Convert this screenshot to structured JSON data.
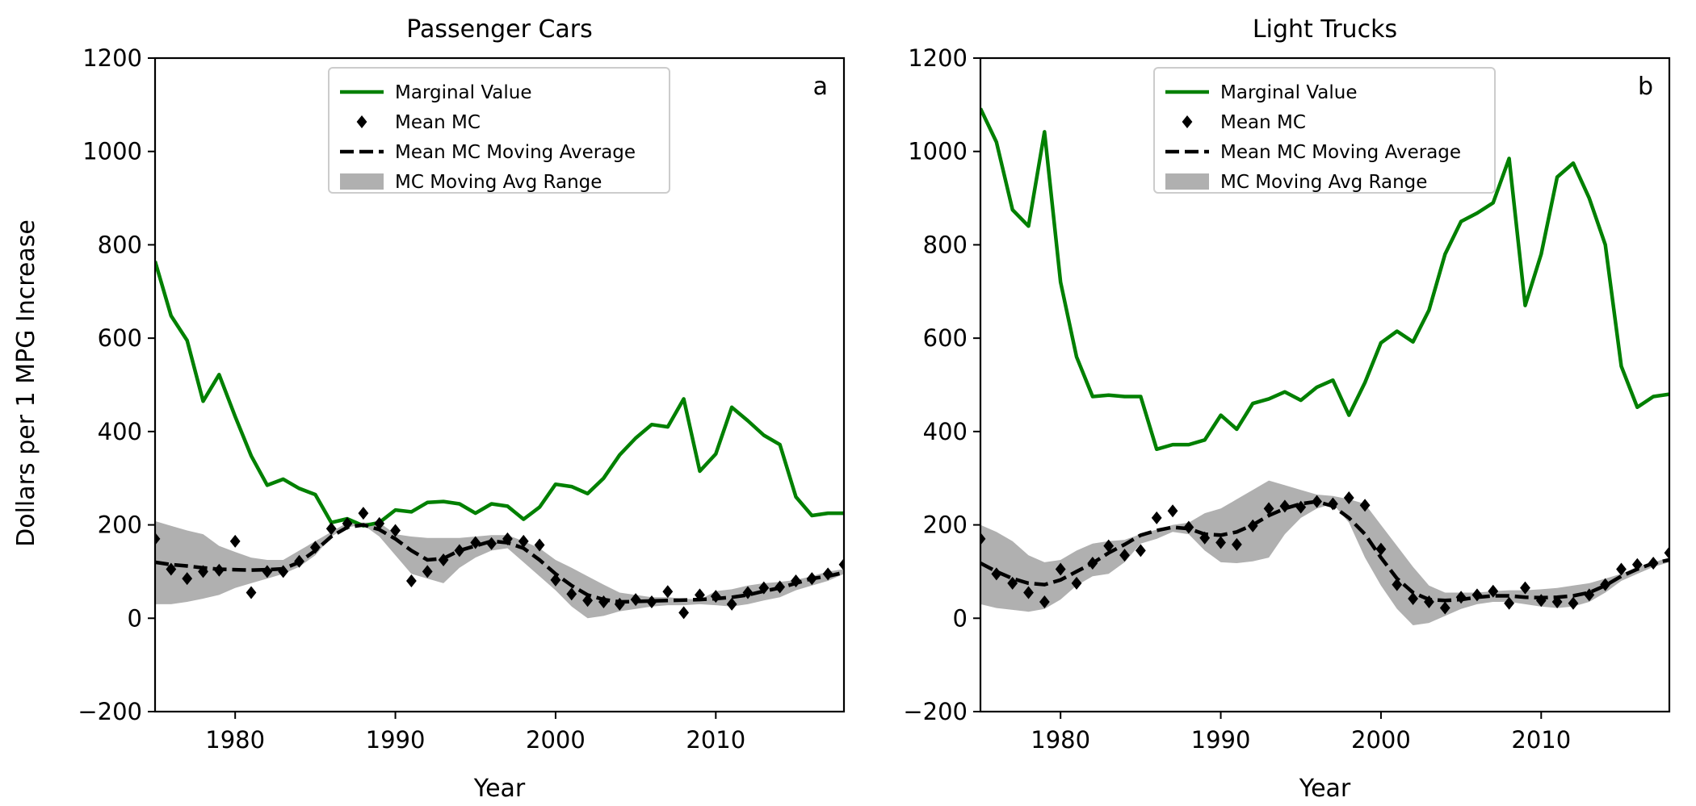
{
  "figure": {
    "ylabel": "Dollars per 1  MPG Increase"
  },
  "chart_data": [
    {
      "type": "line",
      "panel_letter": "a",
      "title": "Passenger Cars",
      "xlabel": "Year",
      "xlim": [
        1975,
        2018
      ],
      "ylim": [
        -200,
        1200
      ],
      "xticks": [
        1980,
        1990,
        2000,
        2010
      ],
      "yticks": [
        -200,
        0,
        200,
        400,
        600,
        800,
        1000,
        1200
      ],
      "grid": false,
      "legend_position": "upper-center",
      "colors": {
        "marginal": "#008000",
        "mc": "#000000",
        "range": "#b0b0b0"
      },
      "legend": [
        "Marginal Value",
        "Mean MC",
        "Mean MC Moving Average",
        "MC Moving Avg Range"
      ],
      "years": [
        1975,
        1976,
        1977,
        1978,
        1979,
        1980,
        1981,
        1982,
        1983,
        1984,
        1985,
        1986,
        1987,
        1988,
        1989,
        1990,
        1991,
        1992,
        1993,
        1994,
        1995,
        1996,
        1997,
        1998,
        1999,
        2000,
        2001,
        2002,
        2003,
        2004,
        2005,
        2006,
        2007,
        2008,
        2009,
        2010,
        2011,
        2012,
        2013,
        2014,
        2015,
        2016,
        2017,
        2018
      ],
      "series": [
        {
          "name": "Marginal Value",
          "style": "line",
          "values": [
            765,
            648,
            595,
            465,
            522,
            432,
            348,
            285,
            298,
            278,
            265,
            205,
            213,
            198,
            205,
            232,
            228,
            248,
            250,
            245,
            225,
            245,
            240,
            212,
            238,
            287,
            282,
            267,
            300,
            350,
            386,
            415,
            410,
            470,
            315,
            352,
            452,
            423,
            392,
            372,
            260,
            220,
            225,
            225
          ]
        },
        {
          "name": "Mean MC",
          "style": "markers",
          "values": [
            170,
            105,
            85,
            100,
            103,
            165,
            55,
            100,
            100,
            122,
            152,
            192,
            203,
            225,
            203,
            188,
            80,
            100,
            125,
            145,
            162,
            160,
            170,
            165,
            157,
            82,
            52,
            38,
            35,
            30,
            40,
            35,
            57,
            12,
            50,
            47,
            30,
            55,
            65,
            67,
            80,
            85,
            95,
            115
          ]
        },
        {
          "name": "Mean MC Moving Average",
          "style": "dashed",
          "values": [
            120,
            115,
            112,
            108,
            105,
            104,
            103,
            104,
            106,
            120,
            145,
            175,
            195,
            200,
            190,
            170,
            145,
            125,
            128,
            145,
            155,
            165,
            162,
            150,
            125,
            95,
            70,
            50,
            40,
            35,
            36,
            37,
            38,
            39,
            40,
            42,
            45,
            50,
            58,
            65,
            75,
            85,
            90,
            98
          ]
        },
        {
          "name": "MC Moving Avg Range",
          "style": "band",
          "lower": [
            30,
            30,
            35,
            42,
            50,
            65,
            75,
            85,
            95,
            110,
            135,
            175,
            195,
            200,
            175,
            135,
            95,
            85,
            75,
            108,
            130,
            145,
            150,
            120,
            90,
            60,
            25,
            0,
            5,
            15,
            20,
            25,
            28,
            28,
            30,
            28,
            25,
            30,
            38,
            45,
            60,
            70,
            80,
            95
          ],
          "upper": [
            208,
            198,
            188,
            180,
            155,
            142,
            130,
            125,
            125,
            145,
            165,
            185,
            205,
            205,
            205,
            180,
            175,
            172,
            172,
            172,
            175,
            178,
            178,
            165,
            150,
            125,
            108,
            90,
            72,
            55,
            50,
            45,
            45,
            42,
            40,
            58,
            62,
            70,
            75,
            78,
            82,
            90,
            100,
            105
          ]
        }
      ]
    },
    {
      "type": "line",
      "panel_letter": "b",
      "title": "Light Trucks",
      "xlabel": "Year",
      "xlim": [
        1975,
        2018
      ],
      "ylim": [
        -200,
        1200
      ],
      "xticks": [
        1980,
        1990,
        2000,
        2010
      ],
      "yticks": [
        -200,
        0,
        200,
        400,
        600,
        800,
        1000,
        1200
      ],
      "grid": false,
      "legend_position": "upper-center",
      "colors": {
        "marginal": "#008000",
        "mc": "#000000",
        "range": "#b0b0b0"
      },
      "legend": [
        "Marginal Value",
        "Mean MC",
        "Mean MC Moving Average",
        "MC Moving Avg Range"
      ],
      "years": [
        1975,
        1976,
        1977,
        1978,
        1979,
        1980,
        1981,
        1982,
        1983,
        1984,
        1985,
        1986,
        1987,
        1988,
        1989,
        1990,
        1991,
        1992,
        1993,
        1994,
        1995,
        1996,
        1997,
        1998,
        1999,
        2000,
        2001,
        2002,
        2003,
        2004,
        2005,
        2006,
        2007,
        2008,
        2009,
        2010,
        2011,
        2012,
        2013,
        2014,
        2015,
        2016,
        2017,
        2018
      ],
      "series": [
        {
          "name": "Marginal Value",
          "style": "line",
          "values": [
            1092,
            1020,
            875,
            840,
            1042,
            720,
            560,
            475,
            478,
            475,
            475,
            362,
            372,
            372,
            382,
            435,
            405,
            460,
            470,
            485,
            467,
            495,
            510,
            435,
            505,
            590,
            615,
            592,
            660,
            780,
            850,
            868,
            890,
            985,
            670,
            780,
            945,
            975,
            900,
            800,
            540,
            452,
            475,
            480
          ]
        },
        {
          "name": "Mean MC",
          "style": "markers",
          "values": [
            170,
            95,
            75,
            55,
            35,
            105,
            75,
            118,
            155,
            135,
            145,
            215,
            230,
            195,
            172,
            162,
            158,
            198,
            235,
            240,
            238,
            250,
            245,
            258,
            242,
            148,
            72,
            42,
            35,
            22,
            45,
            50,
            58,
            32,
            65,
            38,
            35,
            32,
            50,
            72,
            105,
            115,
            118,
            140
          ]
        },
        {
          "name": "Mean MC Moving Average",
          "style": "dashed",
          "values": [
            118,
            100,
            85,
            75,
            72,
            82,
            100,
            118,
            140,
            158,
            178,
            188,
            195,
            192,
            180,
            178,
            185,
            200,
            220,
            235,
            245,
            250,
            240,
            215,
            180,
            130,
            85,
            55,
            40,
            38,
            40,
            45,
            48,
            48,
            45,
            44,
            45,
            48,
            55,
            70,
            90,
            105,
            118,
            125
          ]
        },
        {
          "name": "MC Moving Avg Range",
          "style": "band",
          "lower": [
            30,
            22,
            18,
            14,
            20,
            40,
            70,
            90,
            95,
            120,
            160,
            170,
            185,
            180,
            145,
            120,
            118,
            122,
            130,
            180,
            215,
            235,
            245,
            205,
            130,
            70,
            20,
            -15,
            -10,
            5,
            20,
            30,
            35,
            35,
            30,
            25,
            22,
            25,
            35,
            55,
            80,
            95,
            110,
            120
          ],
          "upper": [
            200,
            185,
            165,
            135,
            120,
            125,
            145,
            160,
            165,
            168,
            180,
            190,
            200,
            205,
            225,
            235,
            255,
            275,
            295,
            285,
            275,
            265,
            262,
            255,
            245,
            200,
            155,
            110,
            70,
            55,
            55,
            55,
            58,
            60,
            60,
            62,
            65,
            70,
            75,
            85,
            95,
            110,
            120,
            130
          ]
        }
      ]
    }
  ]
}
